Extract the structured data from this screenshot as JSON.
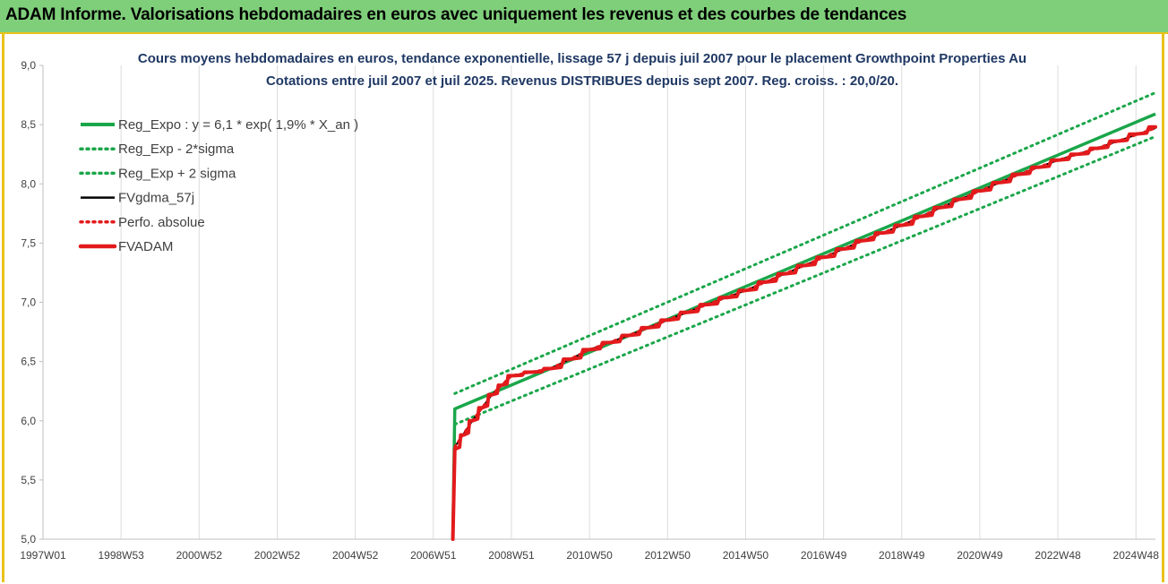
{
  "header": {
    "title": "ADAM Informe. Valorisations hebdomadaires en euros avec uniquement les revenus et des courbes de tendances"
  },
  "chart_data": {
    "type": "line",
    "title": "Cours moyens hebdomadaires en euros, tendance exponentielle, lissage 57 j depuis juil 2007 pour le placement Growthpoint Properties Au",
    "subtitle": "Cotations entre juil 2007 et juil 2025. Revenus DISTRIBUES depuis sept 2007. Reg. croiss. : 20,0/20.",
    "xlabel": "",
    "ylabel": "",
    "x_ticks": [
      "1997W01",
      "1998W53",
      "2000W52",
      "2002W52",
      "2004W52",
      "2006W51",
      "2008W51",
      "2010W50",
      "2012W50",
      "2014W50",
      "2016W49",
      "2018W49",
      "2020W49",
      "2022W48",
      "2024W48"
    ],
    "x_tick_years": [
      1997.0,
      1999.0,
      2001.0,
      2003.0,
      2005.0,
      2007.0,
      2009.0,
      2011.0,
      2013.0,
      2015.0,
      2017.0,
      2019.0,
      2021.0,
      2023.0,
      2025.0
    ],
    "xlim": [
      1997.0,
      2025.5
    ],
    "ylim": [
      5.0,
      9.0
    ],
    "y_ticks": [
      5.0,
      5.5,
      6.0,
      6.5,
      7.0,
      7.5,
      8.0,
      8.5,
      9.0
    ],
    "y_tick_labels": [
      "5,0",
      "5,5",
      "6,0",
      "6,5",
      "7,0",
      "7,5",
      "8,0",
      "8,5",
      "9,0"
    ],
    "grid": "vertical",
    "legend_position": "top-left",
    "series": [
      {
        "name": "Reg_Expo : y = 6,1 * exp( 1,9% *  X_an )",
        "color": "#1aa64a",
        "style": "solid",
        "x": [
          2007.5,
          2007.55,
          2025.5
        ],
        "y": [
          5.0,
          6.1,
          8.59
        ]
      },
      {
        "name": "Reg_Exp - 2*sigma",
        "color": "#1aa64a",
        "style": "dotted",
        "x": [
          2007.55,
          2025.5
        ],
        "y": [
          5.97,
          8.4
        ]
      },
      {
        "name": "Reg_Exp + 2 sigma",
        "color": "#1aa64a",
        "style": "dotted",
        "x": [
          2007.55,
          2025.5
        ],
        "y": [
          6.23,
          8.77
        ]
      },
      {
        "name": "FVgdma_57j",
        "color": "#000000",
        "style": "solid",
        "x": [
          2007.55,
          2008.0,
          2008.5,
          2009.0,
          2010.0,
          2011.0,
          2012.0,
          2013.0,
          2014.0,
          2015.0,
          2016.0,
          2017.0,
          2018.0,
          2019.0,
          2020.0,
          2021.0,
          2022.0,
          2023.0,
          2024.0,
          2025.5
        ],
        "y": [
          5.78,
          6.0,
          6.22,
          6.38,
          6.44,
          6.6,
          6.72,
          6.85,
          6.98,
          7.1,
          7.24,
          7.38,
          7.52,
          7.65,
          7.8,
          7.94,
          8.08,
          8.2,
          8.3,
          8.47
        ]
      },
      {
        "name": "Perfo. absolue",
        "color": "#e31a1c",
        "style": "dotted",
        "x": [
          2007.55,
          2008.0,
          2008.5,
          2009.0,
          2010.0,
          2011.0,
          2012.0,
          2013.0,
          2014.0,
          2015.0,
          2016.0,
          2017.0,
          2018.0,
          2019.0,
          2020.0,
          2021.0,
          2022.0,
          2023.0,
          2024.0,
          2025.5
        ],
        "y": [
          5.78,
          6.0,
          6.22,
          6.38,
          6.44,
          6.6,
          6.72,
          6.85,
          6.98,
          7.1,
          7.24,
          7.38,
          7.52,
          7.65,
          7.8,
          7.94,
          8.08,
          8.2,
          8.3,
          8.47
        ]
      },
      {
        "name": "FVADAM",
        "color": "#e31a1c",
        "style": "thick-stepped",
        "x": [
          2007.5,
          2007.55,
          2008.0,
          2008.5,
          2009.0,
          2010.0,
          2011.0,
          2012.0,
          2013.0,
          2014.0,
          2015.0,
          2016.0,
          2017.0,
          2018.0,
          2019.0,
          2020.0,
          2021.0,
          2022.0,
          2023.0,
          2024.0,
          2025.5
        ],
        "y": [
          5.0,
          5.76,
          6.0,
          6.22,
          6.38,
          6.44,
          6.6,
          6.72,
          6.85,
          6.98,
          7.1,
          7.24,
          7.38,
          7.52,
          7.65,
          7.8,
          7.94,
          8.08,
          8.2,
          8.3,
          8.48
        ]
      }
    ]
  }
}
